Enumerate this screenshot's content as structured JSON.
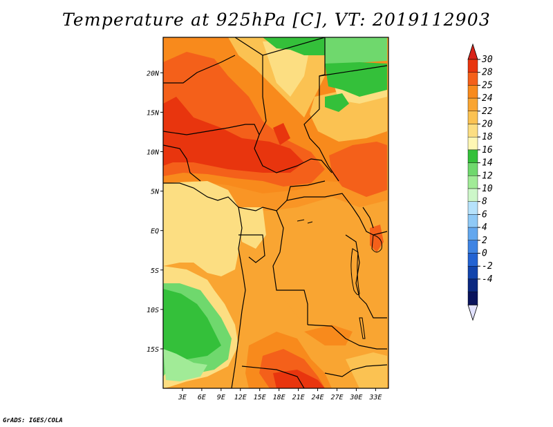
{
  "title": "Temperature at 925hPa [C], VT: 2019112903",
  "credit": "GrADS: IGES/COLA",
  "map": {
    "lon_range": [
      0,
      35
    ],
    "lat_range": [
      -20,
      24.5
    ],
    "lon_ticks": [
      "3E",
      "6E",
      "9E",
      "12E",
      "15E",
      "18E",
      "21E",
      "24E",
      "27E",
      "30E",
      "33E"
    ],
    "lat_ticks": [
      "20N",
      "15N",
      "10N",
      "5N",
      "EQ",
      "5S",
      "10S",
      "15S"
    ]
  },
  "colorbar": {
    "labels": [
      "30",
      "28",
      "25",
      "24",
      "22",
      "20",
      "18",
      "16",
      "14",
      "12",
      "10",
      "8",
      "6",
      "4",
      "2",
      "0",
      "-2",
      "-4"
    ],
    "colors": [
      "#e8350e",
      "#f4601a",
      "#f88a1c",
      "#f9a532",
      "#fbc252",
      "#fcde82",
      "#fef7b4",
      "#34c03a",
      "#6fd86d",
      "#a1eb97",
      "#cdf7c9",
      "#b6e2fb",
      "#8fc9f6",
      "#63a7ee",
      "#3f84e3",
      "#2363d2",
      "#1244ac",
      "#0b2880",
      "#09135c"
    ],
    "top_color": "#d8241a",
    "bottom_color": "#e2e2ff"
  }
}
